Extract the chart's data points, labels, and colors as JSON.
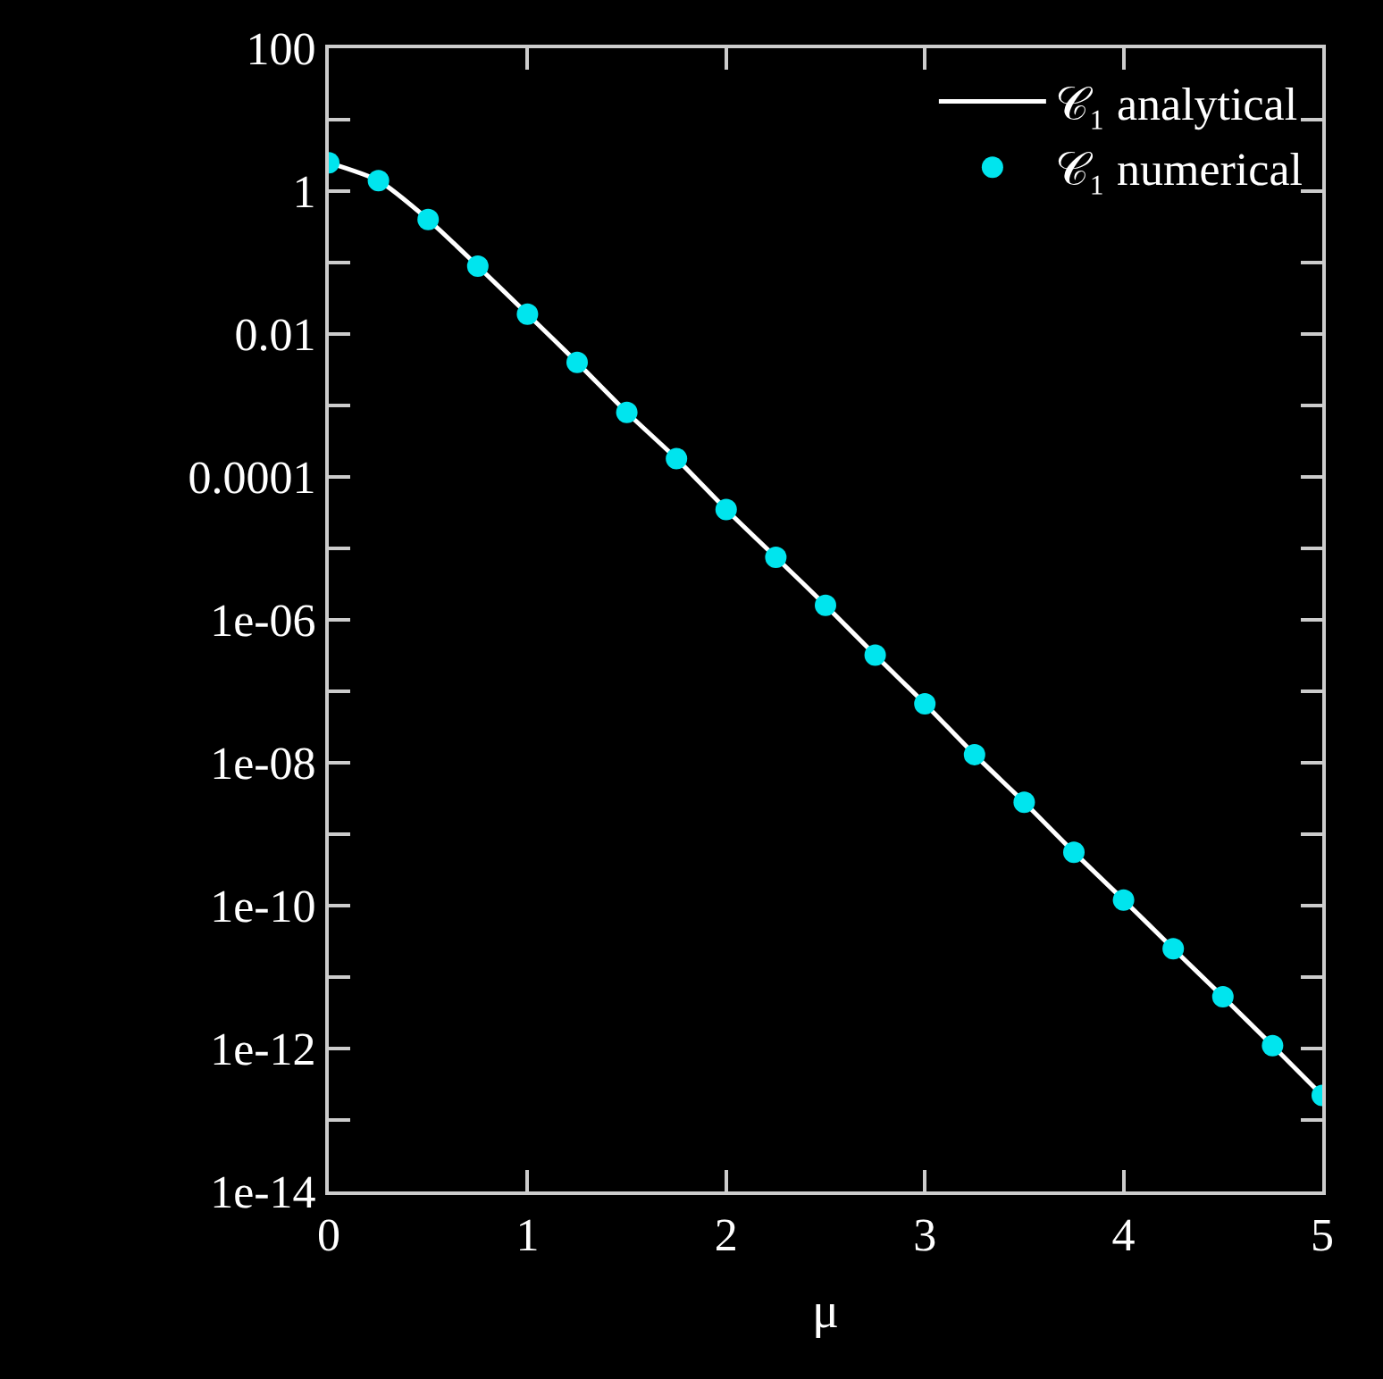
{
  "chart_data": {
    "type": "line",
    "xlabel": "μ",
    "log": "y",
    "grid": false,
    "legend": "top right",
    "xlim": [
      0,
      5
    ],
    "xticks": [
      0,
      1,
      2,
      3,
      4,
      5
    ],
    "ylim": [
      1e-14,
      100
    ],
    "yticks": [
      {
        "value": 1e-14,
        "label": "1e-14"
      },
      {
        "value": 1e-13,
        "label": null
      },
      {
        "value": 1e-12,
        "label": "1e-12"
      },
      {
        "value": 1e-11,
        "label": null
      },
      {
        "value": 1e-10,
        "label": "1e-10"
      },
      {
        "value": 1e-09,
        "label": null
      },
      {
        "value": 1e-08,
        "label": "1e-08"
      },
      {
        "value": 1e-07,
        "label": null
      },
      {
        "value": 1e-06,
        "label": "1e-06"
      },
      {
        "value": 1e-05,
        "label": null
      },
      {
        "value": 0.0001,
        "label": "0.0001"
      },
      {
        "value": 0.001,
        "label": null
      },
      {
        "value": 0.01,
        "label": "0.01"
      },
      {
        "value": 0.1,
        "label": null
      },
      {
        "value": 1,
        "label": "1"
      },
      {
        "value": 10,
        "label": null
      },
      {
        "value": 100,
        "label": "100"
      }
    ],
    "series": [
      {
        "name": "𝒞₁ analytical",
        "color": "#ffffff",
        "marker": "none",
        "line_style": "solid",
        "x": [
          0,
          0.25,
          0.5,
          0.75,
          1,
          1.25,
          1.5,
          1.75,
          2,
          2.25,
          2.5,
          2.75,
          3,
          3.25,
          3.5,
          3.75,
          4,
          4.25,
          4.5,
          4.75,
          5
        ],
        "values": [
          2.5,
          1.4,
          0.4,
          0.089,
          0.019,
          0.004,
          0.0008,
          0.00018,
          3.5e-05,
          7.5e-06,
          1.6e-06,
          3.2e-07,
          6.7e-08,
          1.3e-08,
          2.8e-09,
          5.6e-10,
          1.2e-10,
          2.5e-11,
          5.3e-12,
          1.1e-12,
          2.2e-13
        ]
      },
      {
        "name": "𝒞₁ numerical",
        "type": "scatter",
        "color": "#00e5ee",
        "marker": "circle",
        "x": [
          0,
          0.25,
          0.5,
          0.75,
          1,
          1.25,
          1.5,
          1.75,
          2,
          2.25,
          2.5,
          2.75,
          3,
          3.25,
          3.5,
          3.75,
          4,
          4.25,
          4.5,
          4.75,
          5
        ],
        "values": [
          2.5,
          1.4,
          0.4,
          0.089,
          0.019,
          0.004,
          0.0008,
          0.00018,
          3.5e-05,
          7.5e-06,
          1.6e-06,
          3.2e-07,
          6.7e-08,
          1.3e-08,
          2.8e-09,
          5.6e-10,
          1.2e-10,
          2.5e-11,
          5.3e-12,
          1.1e-12,
          2.2e-13
        ]
      }
    ]
  }
}
